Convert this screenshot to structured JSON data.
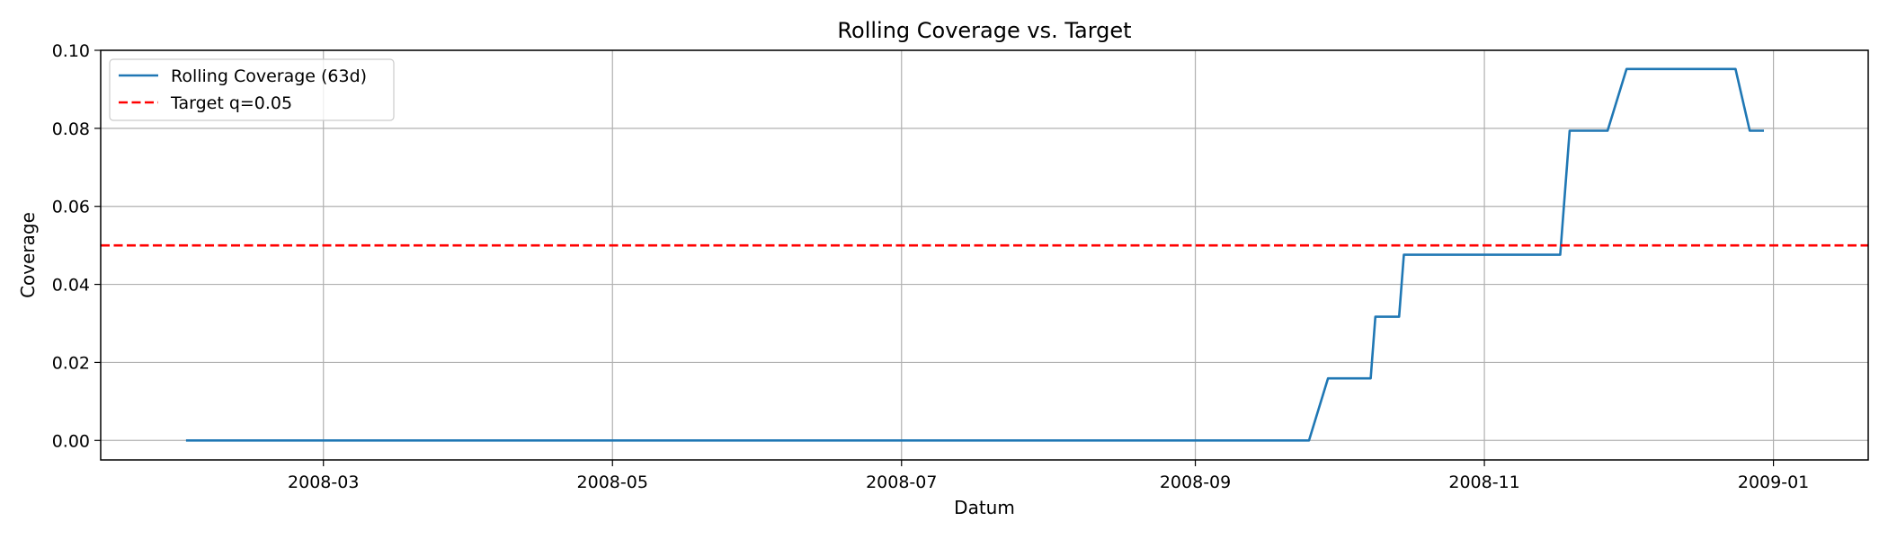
{
  "chart_data": {
    "type": "line",
    "title": "Rolling Coverage vs. Target",
    "xlabel": "Datum",
    "ylabel": "Coverage",
    "xlim": [
      "2008-01-14",
      "2009-01-21"
    ],
    "ylim": [
      -0.005,
      0.1
    ],
    "x_ticks": [
      "2008-03-01",
      "2008-05-01",
      "2008-07-01",
      "2008-09-01",
      "2008-11-01",
      "2009-01-01"
    ],
    "x_tick_labels": [
      "2008-03",
      "2008-05",
      "2008-07",
      "2008-09",
      "2008-11",
      "2009-01"
    ],
    "y_ticks": [
      0.0,
      0.02,
      0.04,
      0.06,
      0.08,
      0.1
    ],
    "y_tick_labels": [
      "0.00",
      "0.02",
      "0.04",
      "0.06",
      "0.08",
      "0.10"
    ],
    "grid": true,
    "legend_position": "top-left",
    "series": [
      {
        "name": "Rolling Coverage (63d)",
        "color": "#1f77b4",
        "style": "solid",
        "points": [
          [
            "2008-02-01",
            0.0
          ],
          [
            "2008-09-25",
            0.0
          ],
          [
            "2008-09-29",
            0.0159
          ],
          [
            "2008-10-08",
            0.0159
          ],
          [
            "2008-10-09",
            0.0317
          ],
          [
            "2008-10-14",
            0.0317
          ],
          [
            "2008-10-15",
            0.0476
          ],
          [
            "2008-11-17",
            0.0476
          ],
          [
            "2008-11-19",
            0.0794
          ],
          [
            "2008-11-27",
            0.0794
          ],
          [
            "2008-12-01",
            0.0952
          ],
          [
            "2008-12-24",
            0.0952
          ],
          [
            "2008-12-27",
            0.0794
          ],
          [
            "2008-12-30",
            0.0794
          ]
        ]
      },
      {
        "name": "Target q=0.05",
        "color": "#ff0000",
        "style": "dashed",
        "hline": 0.05
      }
    ]
  }
}
